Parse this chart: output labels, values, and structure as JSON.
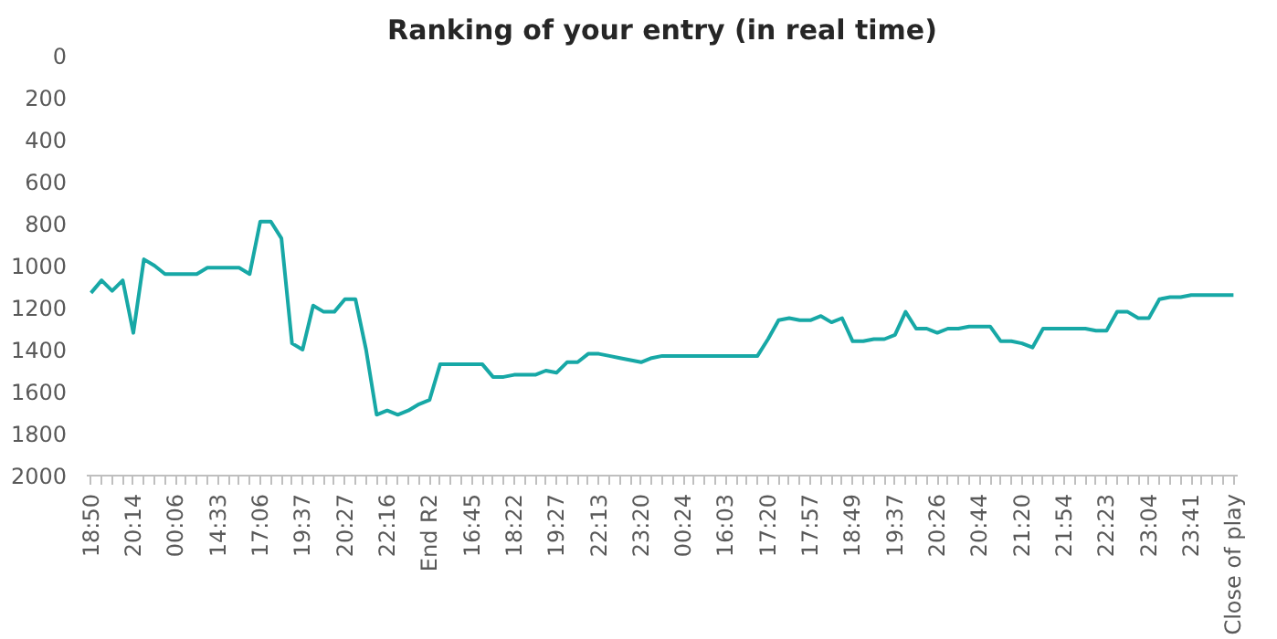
{
  "chart_data": {
    "type": "line",
    "title": "Ranking of your entry (in real time)",
    "categories": [
      "18:50",
      null,
      null,
      null,
      "20:14",
      null,
      null,
      null,
      "00:06",
      null,
      null,
      null,
      "14:33",
      null,
      null,
      null,
      "17:06",
      null,
      null,
      null,
      "19:37",
      null,
      null,
      null,
      "20:27",
      null,
      null,
      null,
      "22:16",
      null,
      null,
      null,
      "End R2",
      null,
      null,
      null,
      "16:45",
      null,
      null,
      null,
      "18:22",
      null,
      null,
      null,
      "19:27",
      null,
      null,
      null,
      "22:13",
      null,
      null,
      null,
      "23:20",
      null,
      null,
      null,
      "00:24",
      null,
      null,
      null,
      "16:03",
      null,
      null,
      null,
      "17:20",
      null,
      null,
      null,
      "17:57",
      null,
      null,
      null,
      "18:49",
      null,
      null,
      null,
      "19:37",
      null,
      null,
      null,
      "20:26",
      null,
      null,
      null,
      "20:44",
      null,
      null,
      null,
      "21:20",
      null,
      null,
      null,
      "21:54",
      null,
      null,
      null,
      "22:23",
      null,
      null,
      null,
      "23:04",
      null,
      null,
      null,
      "23:41",
      null,
      null,
      null,
      "Close of play"
    ],
    "series": [
      {
        "color": "#17a8a6",
        "values": [
          1130,
          1070,
          1120,
          1070,
          1320,
          970,
          1000,
          1040,
          1040,
          1040,
          1040,
          1010,
          1010,
          1010,
          1010,
          1040,
          790,
          790,
          870,
          1370,
          1400,
          1190,
          1220,
          1220,
          1160,
          1160,
          1400,
          1710,
          1690,
          1710,
          1690,
          1660,
          1640,
          1470,
          1470,
          1470,
          1470,
          1470,
          1530,
          1530,
          1520,
          1520,
          1520,
          1500,
          1510,
          1460,
          1460,
          1420,
          1420,
          1430,
          1440,
          1450,
          1460,
          1440,
          1430,
          1430,
          1430,
          1430,
          1430,
          1430,
          1430,
          1430,
          1430,
          1430,
          1350,
          1260,
          1250,
          1260,
          1260,
          1240,
          1270,
          1250,
          1360,
          1360,
          1350,
          1350,
          1330,
          1220,
          1300,
          1300,
          1320,
          1300,
          1300,
          1290,
          1290,
          1290,
          1360,
          1360,
          1370,
          1390,
          1300,
          1300,
          1300,
          1300,
          1300,
          1310,
          1310,
          1220,
          1220,
          1250,
          1250,
          1160,
          1150,
          1150,
          1140,
          1140,
          1140,
          1140,
          1140
        ]
      }
    ],
    "ylim": [
      2000,
      0
    ],
    "yticks": [
      0,
      200,
      400,
      600,
      800,
      1000,
      1200,
      1400,
      1600,
      1800,
      2000
    ],
    "grid": false
  }
}
